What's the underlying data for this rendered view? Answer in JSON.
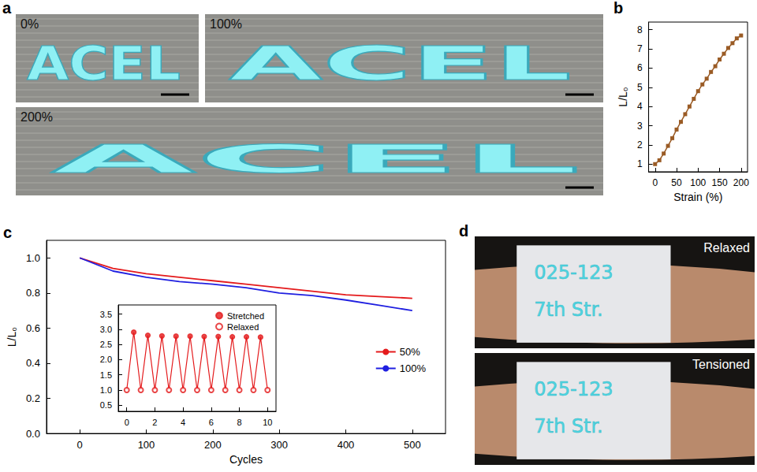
{
  "panels": {
    "a": {
      "label": "a",
      "photos": [
        {
          "caption": "0%",
          "text": "ACEL"
        },
        {
          "caption": "100%",
          "text": "ACEL"
        },
        {
          "caption": "200%",
          "text": "ACEL"
        }
      ]
    },
    "d": {
      "label": "d",
      "photos": [
        {
          "caption": "Relaxed",
          "lines": [
            "025-123",
            "7th Str."
          ]
        },
        {
          "caption": "Tensioned",
          "lines": [
            "025-123",
            "7th Str."
          ]
        }
      ]
    }
  },
  "chart_data": [
    {
      "label": "b",
      "type": "line",
      "x_label": "Strain (%)",
      "y_label": "L/L₀",
      "x": [
        0,
        10,
        20,
        30,
        40,
        50,
        60,
        70,
        80,
        90,
        100,
        110,
        120,
        130,
        140,
        150,
        160,
        170,
        180,
        190,
        200
      ],
      "xlim": [
        -15,
        215
      ],
      "xticks": [
        0,
        50,
        100,
        150,
        200
      ],
      "ylim": [
        0.6,
        8.4
      ],
      "yticks": [
        1,
        2,
        3,
        4,
        5,
        6,
        7,
        8
      ],
      "grid": false,
      "series": [
        {
          "color": "#9a5b25",
          "marker": "square",
          "line_style": "solid",
          "values": [
            1.0,
            1.2,
            1.55,
            1.95,
            2.35,
            2.8,
            3.2,
            3.6,
            4.0,
            4.4,
            4.8,
            5.15,
            5.45,
            5.8,
            6.1,
            6.45,
            6.75,
            7.05,
            7.3,
            7.55,
            7.7
          ]
        }
      ]
    },
    {
      "label": "c",
      "type": "line",
      "x_label": "Cycles",
      "y_label": "L/L₀",
      "x": [
        0,
        50,
        100,
        150,
        200,
        250,
        300,
        350,
        400,
        450,
        500
      ],
      "xlim": [
        -50,
        550
      ],
      "xticks": [
        0,
        100,
        200,
        300,
        400,
        500
      ],
      "ylim": [
        0,
        1.1
      ],
      "yticks": [
        {
          "value": 0,
          "label": "0.0"
        },
        0.2,
        0.4,
        0.6,
        0.8,
        {
          "value": 1,
          "label": "1.0"
        }
      ],
      "grid": false,
      "legend": "right",
      "series": [
        {
          "name": "50%",
          "color": "#e41a1c",
          "marker": "none",
          "line_style": "solid",
          "values": [
            1.0,
            0.94,
            0.91,
            0.89,
            0.87,
            0.85,
            0.83,
            0.81,
            0.79,
            0.78,
            0.77
          ]
        },
        {
          "name": "100%",
          "color": "#1f1fe0",
          "marker": "none",
          "line_style": "solid",
          "values": [
            1.0,
            0.925,
            0.89,
            0.865,
            0.85,
            0.83,
            0.8,
            0.785,
            0.76,
            0.73,
            0.7
          ]
        }
      ],
      "inset": {
        "type": "line",
        "color": "#e41a1c",
        "legend": "top right",
        "grid": false,
        "xlim": [
          -0.6,
          10.6
        ],
        "xticks": [
          0,
          2,
          4,
          6,
          8,
          10
        ],
        "ylim": [
          0.3,
          3.8
        ],
        "yticks": [
          0.5,
          {
            "value": 1,
            "label": "1.0"
          },
          1.5,
          {
            "value": 2,
            "label": "2.0"
          },
          2.5,
          {
            "value": 3,
            "label": "3.0"
          },
          3.5
        ],
        "series": [
          {
            "name": "Stretched",
            "color": "#e41a1c",
            "marker": "filled circle",
            "x": [
              0.5,
              1.5,
              2.5,
              3.5,
              4.5,
              5.5,
              6.5,
              7.5,
              8.5,
              9.5
            ],
            "values": [
              2.9,
              2.8,
              2.78,
              2.77,
              2.77,
              2.76,
              2.76,
              2.75,
              2.75,
              2.74
            ]
          },
          {
            "name": "Relaxed",
            "color": "#e41a1c",
            "marker": "open circle",
            "x": [
              0,
              1,
              2,
              3,
              4,
              5,
              6,
              7,
              8,
              9,
              10
            ],
            "values": [
              1.0,
              1.0,
              1.0,
              1.0,
              1.0,
              1.0,
              1.0,
              1.0,
              1.0,
              1.0,
              1.0
            ]
          }
        ]
      }
    }
  ]
}
